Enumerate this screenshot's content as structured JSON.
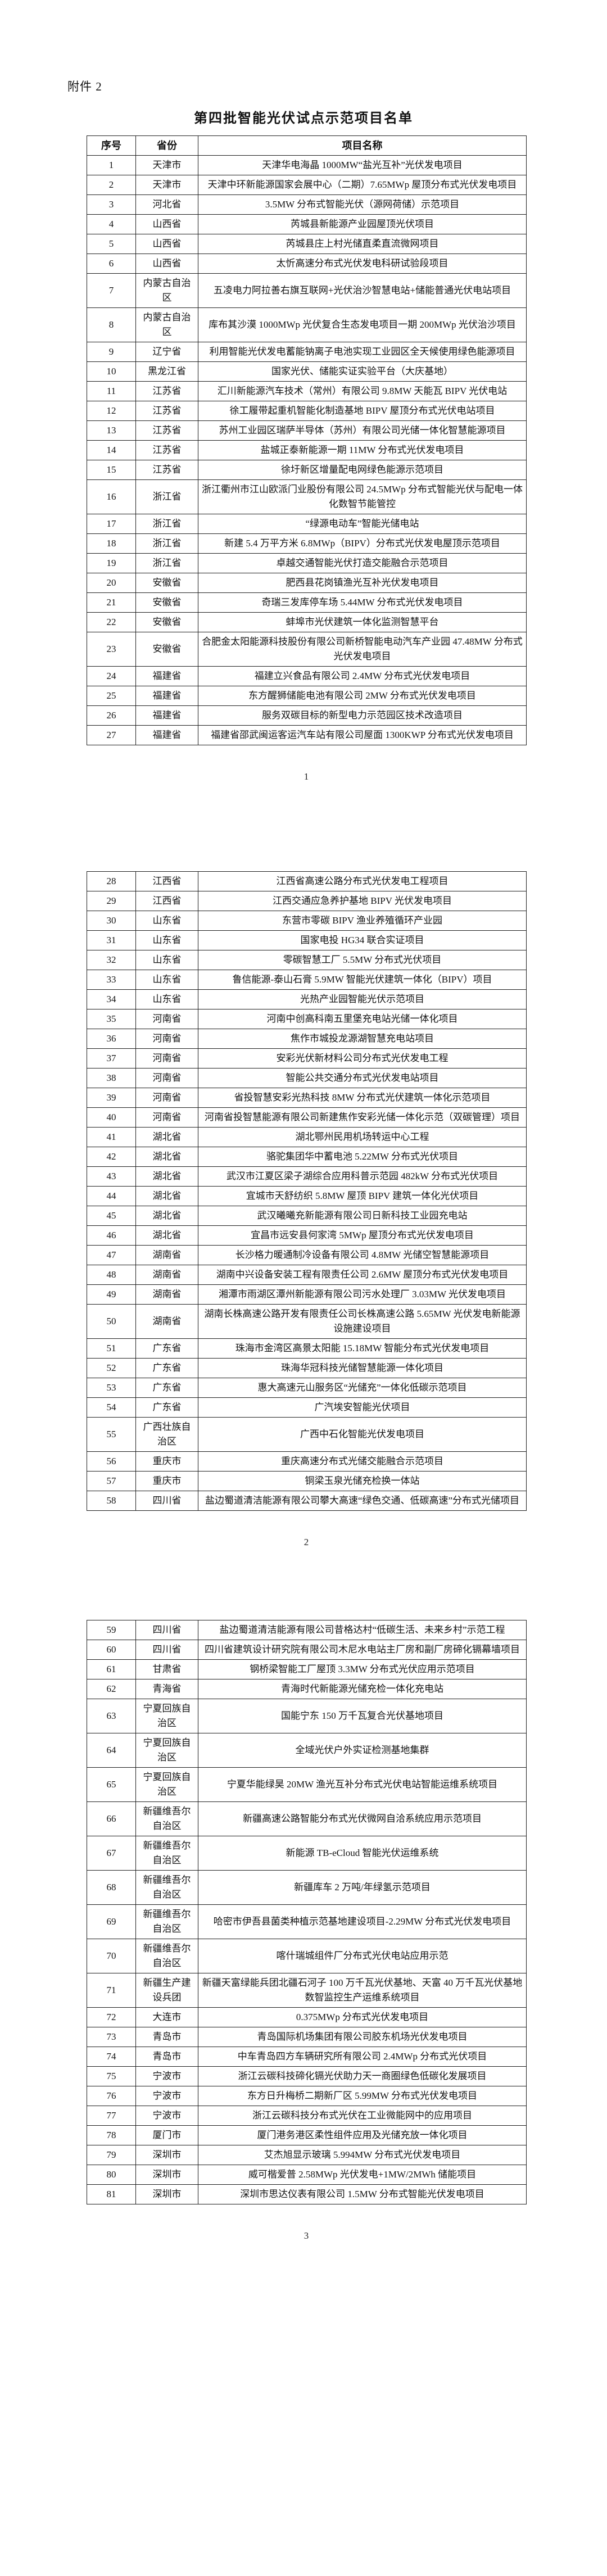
{
  "document": {
    "attachment_label": "附件 2",
    "title": "第四批智能光伏试点示范项目名单",
    "columns": [
      "序号",
      "省份",
      "项目名称"
    ],
    "pages": [
      {
        "page_number": "1",
        "rows": [
          {
            "no": "1",
            "province": "天津市",
            "project": "天津华电海晶 1000MW“盐光互补”光伏发电项目"
          },
          {
            "no": "2",
            "province": "天津市",
            "project": "天津中环新能源国家会展中心（二期）7.65MWp 屋顶分布式光伏发电项目"
          },
          {
            "no": "3",
            "province": "河北省",
            "project": "3.5MW 分布式智能光伏（源网荷储）示范项目"
          },
          {
            "no": "4",
            "province": "山西省",
            "project": "芮城县新能源产业园屋顶光伏项目"
          },
          {
            "no": "5",
            "province": "山西省",
            "project": "芮城县庄上村光储直柔直流微网项目"
          },
          {
            "no": "6",
            "province": "山西省",
            "project": "太忻高速分布式光伏发电科研试验段项目"
          },
          {
            "no": "7",
            "province": "内蒙古自治区",
            "project": "五凌电力阿拉善右旗互联网+光伏治沙智慧电站+储能普通光伏电站项目"
          },
          {
            "no": "8",
            "province": "内蒙古自治区",
            "project": "库布其沙漠 1000MWp 光伏复合生态发电项目一期 200MWp 光伏治沙项目"
          },
          {
            "no": "9",
            "province": "辽宁省",
            "project": "利用智能光伏发电蓄能钠离子电池实现工业园区全天候使用绿色能源项目"
          },
          {
            "no": "10",
            "province": "黑龙江省",
            "project": "国家光伏、储能实证实验平台（大庆基地）"
          },
          {
            "no": "11",
            "province": "江苏省",
            "project": "汇川新能源汽车技术（常州）有限公司 9.8MW 天能瓦 BIPV 光伏电站"
          },
          {
            "no": "12",
            "province": "江苏省",
            "project": "徐工履带起重机智能化制造基地 BIPV 屋顶分布式光伏电站项目"
          },
          {
            "no": "13",
            "province": "江苏省",
            "project": "苏州工业园区瑞萨半导体（苏州）有限公司光储一体化智慧能源项目"
          },
          {
            "no": "14",
            "province": "江苏省",
            "project": "盐城正泰新能源一期 11MW 分布式光伏发电项目"
          },
          {
            "no": "15",
            "province": "江苏省",
            "project": "徐圩新区增量配电网绿色能源示范项目"
          },
          {
            "no": "16",
            "province": "浙江省",
            "project": "浙江衢州市江山欧派门业股份有限公司 24.5MWp 分布式智能光伏与配电一体化数智节能管控"
          },
          {
            "no": "17",
            "province": "浙江省",
            "project": "“绿源电动车”智能光储电站"
          },
          {
            "no": "18",
            "province": "浙江省",
            "project": "新建 5.4 万平方米 6.8MWp（BIPV）分布式光伏发电屋顶示范项目"
          },
          {
            "no": "19",
            "province": "浙江省",
            "project": "卓越交通智能光伏打造交能融合示范项目"
          },
          {
            "no": "20",
            "province": "安徽省",
            "project": "肥西县花岗镇渔光互补光伏发电项目"
          },
          {
            "no": "21",
            "province": "安徽省",
            "project": "奇瑞三发库停车场 5.44MW 分布式光伏发电项目"
          },
          {
            "no": "22",
            "province": "安徽省",
            "project": "蚌埠市光伏建筑一体化监测智慧平台"
          },
          {
            "no": "23",
            "province": "安徽省",
            "project": "合肥金太阳能源科技股份有限公司新桥智能电动汽车产业园 47.48MW 分布式光伏发电项目"
          },
          {
            "no": "24",
            "province": "福建省",
            "project": "福建立兴食品有限公司 2.4MW 分布式光伏发电项目"
          },
          {
            "no": "25",
            "province": "福建省",
            "project": "东方醒狮储能电池有限公司 2MW 分布式光伏发电项目"
          },
          {
            "no": "26",
            "province": "福建省",
            "project": "服务双碳目标的新型电力示范园区技术改造项目"
          },
          {
            "no": "27",
            "province": "福建省",
            "project": "福建省邵武闽运客运汽车站有限公司屋面 1300KWP 分布式光伏发电项目"
          }
        ]
      },
      {
        "page_number": "2",
        "rows": [
          {
            "no": "28",
            "province": "江西省",
            "project": "江西省高速公路分布式光伏发电工程项目"
          },
          {
            "no": "29",
            "province": "江西省",
            "project": "江西交通应急养护基地 BIPV 光伏发电项目"
          },
          {
            "no": "30",
            "province": "山东省",
            "project": "东营市零碳 BIPV 渔业养殖循环产业园"
          },
          {
            "no": "31",
            "province": "山东省",
            "project": "国家电投 HG34 联合实证项目"
          },
          {
            "no": "32",
            "province": "山东省",
            "project": "零碳智慧工厂 5.5MW 分布式光伏项目"
          },
          {
            "no": "33",
            "province": "山东省",
            "project": "鲁信能源-泰山石膏 5.9MW 智能光伏建筑一体化（BIPV）项目"
          },
          {
            "no": "34",
            "province": "山东省",
            "project": "光热产业园智能光伏示范项目"
          },
          {
            "no": "35",
            "province": "河南省",
            "project": "河南中创高科南五里堡充电站光储一体化项目"
          },
          {
            "no": "36",
            "province": "河南省",
            "project": "焦作市城投龙源湖智慧充电站项目"
          },
          {
            "no": "37",
            "province": "河南省",
            "project": "安彩光伏新材料公司分布式光伏发电工程"
          },
          {
            "no": "38",
            "province": "河南省",
            "project": "智能公共交通分布式光伏发电站项目"
          },
          {
            "no": "39",
            "province": "河南省",
            "project": "省投智慧安彩光热科技 8MW 分布式光伏建筑一体化示范项目"
          },
          {
            "no": "40",
            "province": "河南省",
            "project": "河南省投智慧能源有限公司新建焦作安彩光储一体化示范（双碳管理）项目"
          },
          {
            "no": "41",
            "province": "湖北省",
            "project": "湖北鄂州民用机场转运中心工程"
          },
          {
            "no": "42",
            "province": "湖北省",
            "project": "骆驼集团华中蓄电池 5.22MW 分布式光伏项目"
          },
          {
            "no": "43",
            "province": "湖北省",
            "project": "武汉市江夏区梁子湖综合应用科普示范园 482kW 分布式光伏项目"
          },
          {
            "no": "44",
            "province": "湖北省",
            "project": "宜城市天舒纺织 5.8MW 屋顶 BIPV 建筑一体化光伏项目"
          },
          {
            "no": "45",
            "province": "湖北省",
            "project": "武汉曦曦充新能源有限公司日新科技工业园充电站"
          },
          {
            "no": "46",
            "province": "湖北省",
            "project": "宜昌市远安县何家湾 5MWp 屋顶分布式光伏发电项目"
          },
          {
            "no": "47",
            "province": "湖南省",
            "project": "长沙格力暖通制冷设备有限公司 4.8MW 光储空智慧能源项目"
          },
          {
            "no": "48",
            "province": "湖南省",
            "project": "湖南中兴设备安装工程有限责任公司 2.6MW 屋顶分布式光伏发电项目"
          },
          {
            "no": "49",
            "province": "湖南省",
            "project": "湘潭市雨湖区潭州新能源有限公司污水处理厂 3.03MW 光伏发电项目"
          },
          {
            "no": "50",
            "province": "湖南省",
            "project": "湖南长株高速公路开发有限责任公司长株高速公路 5.65MW 光伏发电新能源设施建设项目"
          },
          {
            "no": "51",
            "province": "广东省",
            "project": "珠海市金湾区高景太阳能 15.18MW 智能分布式光伏发电项目"
          },
          {
            "no": "52",
            "province": "广东省",
            "project": "珠海华冠科技光储智慧能源一体化项目"
          },
          {
            "no": "53",
            "province": "广东省",
            "project": "惠大高速元山服务区“光储充”一体化低碳示范项目"
          },
          {
            "no": "54",
            "province": "广东省",
            "project": "广汽埃安智能光伏项目"
          },
          {
            "no": "55",
            "province": "广西壮族自治区",
            "project": "广西中石化智能光伏发电项目"
          },
          {
            "no": "56",
            "province": "重庆市",
            "project": "重庆高速分布式光储交能融合示范项目"
          },
          {
            "no": "57",
            "province": "重庆市",
            "project": "铜梁玉泉光储充检换一体站"
          },
          {
            "no": "58",
            "province": "四川省",
            "project": "盐边蜀道清洁能源有限公司攀大高速“绿色交通、低碳高速”分布式光储项目"
          }
        ]
      },
      {
        "page_number": "3",
        "rows": [
          {
            "no": "59",
            "province": "四川省",
            "project": "盐边蜀道清洁能源有限公司昔格达村“低碳生活、未来乡村”示范工程"
          },
          {
            "no": "60",
            "province": "四川省",
            "project": "四川省建筑设计研究院有限公司木尼水电站主厂房和副厂房碲化镉幕墙项目"
          },
          {
            "no": "61",
            "province": "甘肃省",
            "project": "钢桥梁智能工厂屋顶 3.3MW 分布式光伏应用示范项目"
          },
          {
            "no": "62",
            "province": "青海省",
            "project": "青海时代新能源光储充检一体化充电站"
          },
          {
            "no": "63",
            "province": "宁夏回族自治区",
            "project": "国能宁东 150 万千瓦复合光伏基地项目"
          },
          {
            "no": "64",
            "province": "宁夏回族自治区",
            "project": "全域光伏户外实证检测基地集群"
          },
          {
            "no": "65",
            "province": "宁夏回族自治区",
            "project": "宁夏华能绿昊 20MW 渔光互补分布式光伏电站智能运维系统项目"
          },
          {
            "no": "66",
            "province": "新疆维吾尔自治区",
            "project": "新疆高速公路智能分布式光伏微网自洽系统应用示范项目"
          },
          {
            "no": "67",
            "province": "新疆维吾尔自治区",
            "project": "新能源 TB-eCloud 智能光伏运维系统"
          },
          {
            "no": "68",
            "province": "新疆维吾尔自治区",
            "project": "新疆库车 2 万吨/年绿氢示范项目"
          },
          {
            "no": "69",
            "province": "新疆维吾尔自治区",
            "project": "哈密市伊吾县菌类种植示范基地建设项目-2.29MW 分布式光伏发电项目"
          },
          {
            "no": "70",
            "province": "新疆维吾尔自治区",
            "project": "喀什瑞城组件厂分布式光伏电站应用示范"
          },
          {
            "no": "71",
            "province": "新疆生产建设兵团",
            "project": "新疆天富绿能兵团北疆石河子 100 万千瓦光伏基地、天富 40 万千瓦光伏基地数智监控生产运维系统项目"
          },
          {
            "no": "72",
            "province": "大连市",
            "project": "0.375MWp 分布式光伏发电项目"
          },
          {
            "no": "73",
            "province": "青岛市",
            "project": "青岛国际机场集团有限公司胶东机场光伏发电项目"
          },
          {
            "no": "74",
            "province": "青岛市",
            "project": "中车青岛四方车辆研究所有限公司 2.4MWp 分布式光伏项目"
          },
          {
            "no": "75",
            "province": "宁波市",
            "project": "浙江云碳科技碲化镉光伏助力天一商圈绿色低碳化发展项目"
          },
          {
            "no": "76",
            "province": "宁波市",
            "project": "东方日升梅桥二期新厂区 5.99MW 分布式光伏发电项目"
          },
          {
            "no": "77",
            "province": "宁波市",
            "project": "浙江云碳科技分布式光伏在工业微能网中的应用项目"
          },
          {
            "no": "78",
            "province": "厦门市",
            "project": "厦门港务港区柔性组件应用及光储充放一体化项目"
          },
          {
            "no": "79",
            "province": "深圳市",
            "project": "艾杰旭显示玻璃 5.994MW 分布式光伏发电项目"
          },
          {
            "no": "80",
            "province": "深圳市",
            "project": "威可楷爱普 2.58MWp 光伏发电+1MW/2MWh 储能项目"
          },
          {
            "no": "81",
            "province": "深圳市",
            "project": "深圳市思达仪表有限公司 1.5MW 分布式智能光伏发电项目"
          }
        ]
      }
    ]
  }
}
